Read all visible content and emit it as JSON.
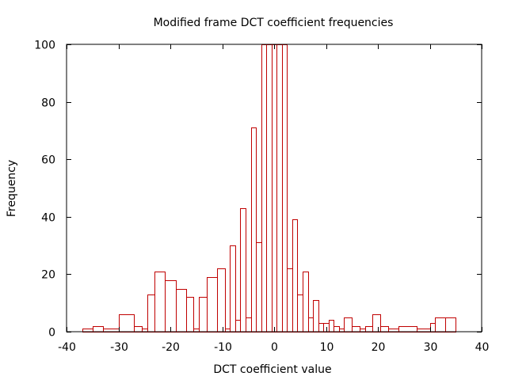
{
  "chart_data": {
    "type": "bar",
    "title": "Modified frame DCT coefficient frequencies",
    "xlabel": "DCT coefficient value",
    "ylabel": "Frequency",
    "xlim": [
      -40,
      40
    ],
    "ylim": [
      0,
      100
    ],
    "xticks": [
      "-40",
      "-30",
      "-20",
      "-10",
      "0",
      "10",
      "20",
      "30",
      "40"
    ],
    "yticks": [
      "0",
      "20",
      "40",
      "60",
      "80",
      "100"
    ],
    "grid": false,
    "legend": "none",
    "bar_color": "#c00000",
    "bars": [
      {
        "x0": -37,
        "x1": -35,
        "value": 1
      },
      {
        "x0": -35,
        "x1": -33,
        "value": 2
      },
      {
        "x0": -33,
        "x1": -30,
        "value": 1
      },
      {
        "x0": -30,
        "x1": -27,
        "value": 6
      },
      {
        "x0": -27,
        "x1": -25.5,
        "value": 2
      },
      {
        "x0": -25.5,
        "x1": -24.5,
        "value": 1
      },
      {
        "x0": -24.5,
        "x1": -23,
        "value": 13
      },
      {
        "x0": -23,
        "x1": -21,
        "value": 21
      },
      {
        "x0": -21,
        "x1": -19,
        "value": 18
      },
      {
        "x0": -19,
        "x1": -17,
        "value": 15
      },
      {
        "x0": -17,
        "x1": -15.5,
        "value": 12
      },
      {
        "x0": -15.5,
        "x1": -14.5,
        "value": 1
      },
      {
        "x0": -14.5,
        "x1": -13,
        "value": 12
      },
      {
        "x0": -13,
        "x1": -11,
        "value": 19
      },
      {
        "x0": -11,
        "x1": -9.5,
        "value": 22
      },
      {
        "x0": -9.5,
        "x1": -8.5,
        "value": 1
      },
      {
        "x0": -8.5,
        "x1": -7.5,
        "value": 30
      },
      {
        "x0": -7.5,
        "x1": -6.5,
        "value": 4
      },
      {
        "x0": -6.5,
        "x1": -5.5,
        "value": 43
      },
      {
        "x0": -5.5,
        "x1": -4.5,
        "value": 5
      },
      {
        "x0": -4.5,
        "x1": -3.5,
        "value": 71
      },
      {
        "x0": -3.5,
        "x1": -2.5,
        "value": 31
      },
      {
        "x0": -2.5,
        "x1": -1.5,
        "value": 100
      },
      {
        "x0": -1.5,
        "x1": -0.5,
        "value": 100
      },
      {
        "x0": -0.5,
        "x1": 0.5,
        "value": 100
      },
      {
        "x0": 0.5,
        "x1": 1.5,
        "value": 100
      },
      {
        "x0": 1.5,
        "x1": 2.5,
        "value": 100
      },
      {
        "x0": 2.5,
        "x1": 3.5,
        "value": 22
      },
      {
        "x0": 3.5,
        "x1": 4.5,
        "value": 39
      },
      {
        "x0": 4.5,
        "x1": 5.5,
        "value": 13
      },
      {
        "x0": 5.5,
        "x1": 6.5,
        "value": 21
      },
      {
        "x0": 6.5,
        "x1": 7.5,
        "value": 5
      },
      {
        "x0": 7.5,
        "x1": 8.5,
        "value": 11
      },
      {
        "x0": 8.5,
        "x1": 9.5,
        "value": 3
      },
      {
        "x0": 9.5,
        "x1": 10.5,
        "value": 3
      },
      {
        "x0": 10.5,
        "x1": 11.5,
        "value": 4
      },
      {
        "x0": 11.5,
        "x1": 12.5,
        "value": 2
      },
      {
        "x0": 12.5,
        "x1": 13.5,
        "value": 1
      },
      {
        "x0": 13.5,
        "x1": 15,
        "value": 5
      },
      {
        "x0": 15,
        "x1": 16.5,
        "value": 2
      },
      {
        "x0": 16.5,
        "x1": 17.5,
        "value": 1
      },
      {
        "x0": 17.5,
        "x1": 19,
        "value": 2
      },
      {
        "x0": 19,
        "x1": 20.5,
        "value": 6
      },
      {
        "x0": 20.5,
        "x1": 22,
        "value": 2
      },
      {
        "x0": 22,
        "x1": 24,
        "value": 1
      },
      {
        "x0": 24,
        "x1": 27.5,
        "value": 2
      },
      {
        "x0": 27.5,
        "x1": 30,
        "value": 1
      },
      {
        "x0": 30,
        "x1": 31,
        "value": 3
      },
      {
        "x0": 31,
        "x1": 33,
        "value": 5
      },
      {
        "x0": 33,
        "x1": 35,
        "value": 5
      }
    ]
  }
}
